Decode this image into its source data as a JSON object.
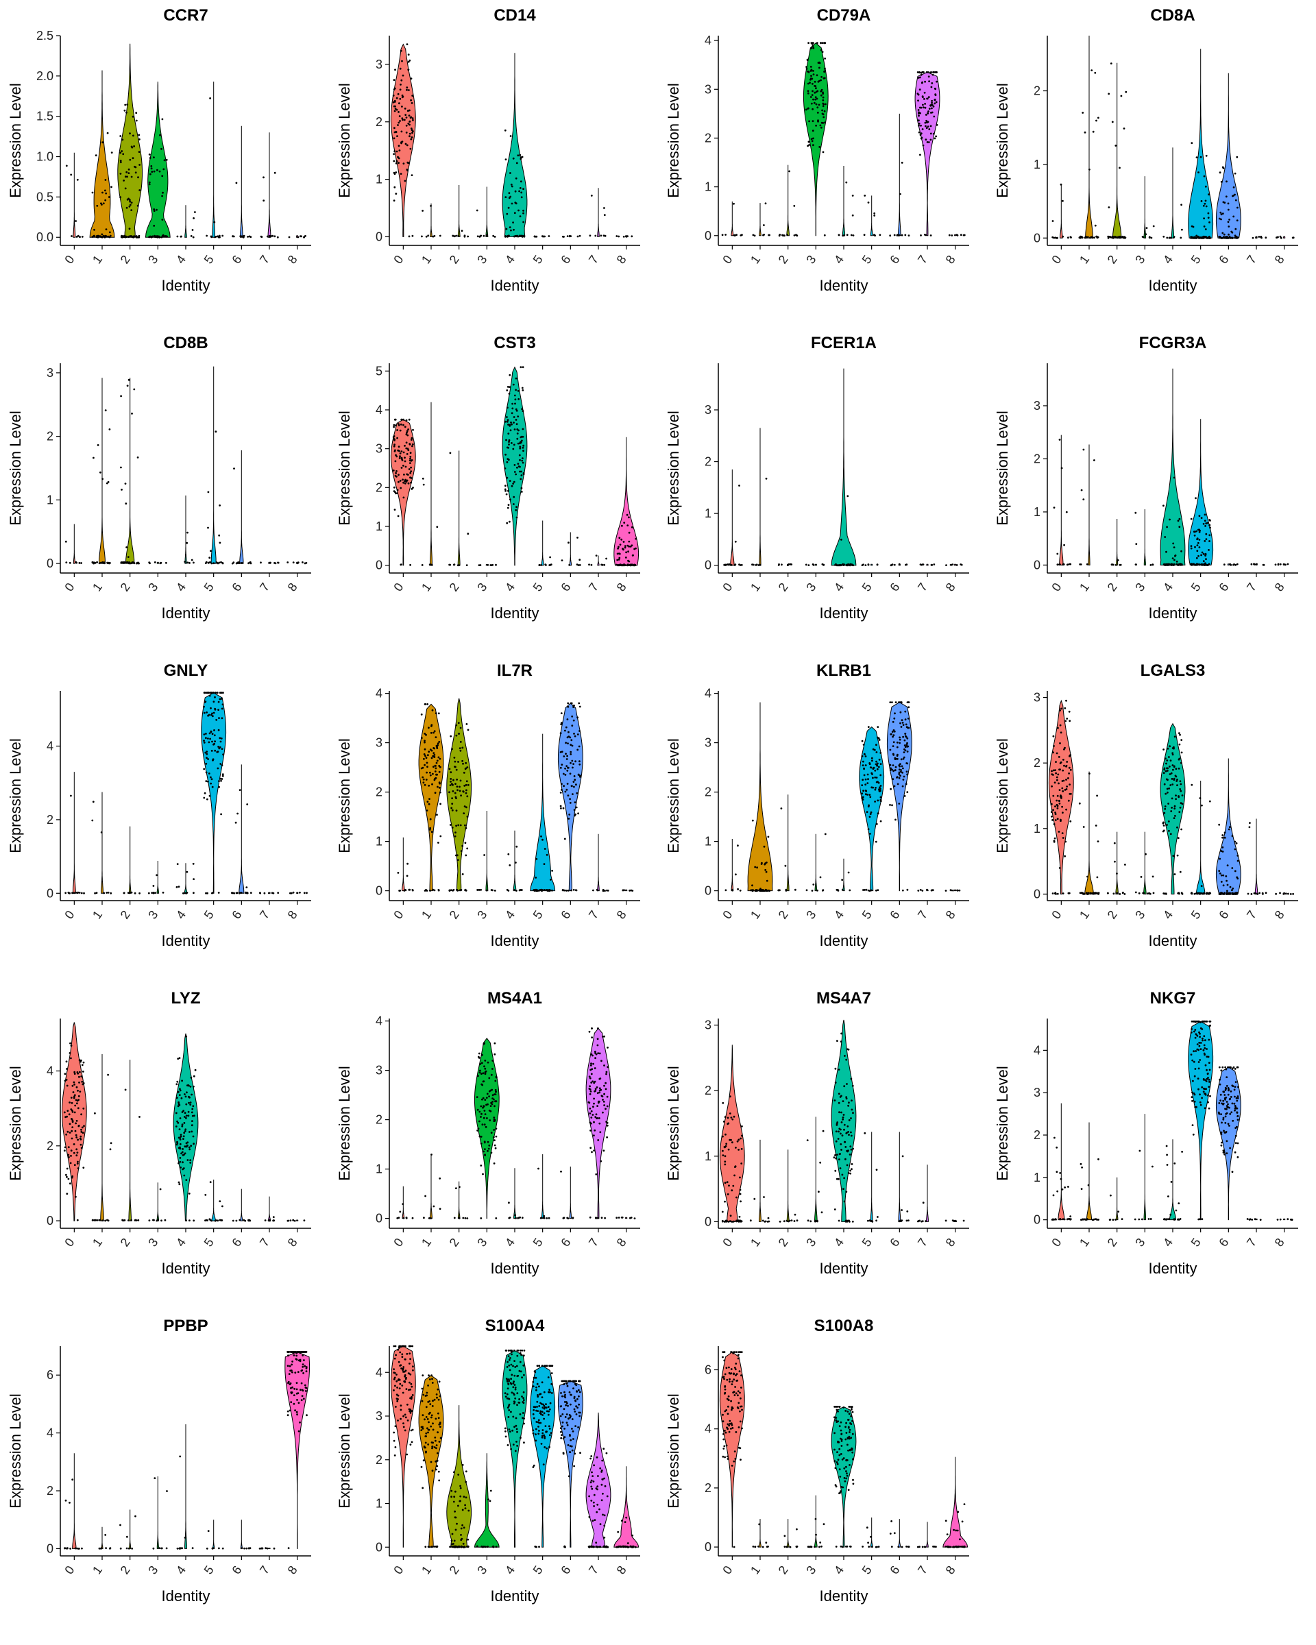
{
  "chart_data": {
    "type": "violin",
    "shared": {
      "xlabel": "Identity",
      "ylabel": "Expression Level",
      "categories": [
        "0",
        "1",
        "2",
        "3",
        "4",
        "5",
        "6",
        "7",
        "8"
      ],
      "colors": [
        "#F8766D",
        "#D39200",
        "#93AA00",
        "#00BA38",
        "#00C19F",
        "#00B9E3",
        "#619CFF",
        "#DB72FB",
        "#FF61C3"
      ]
    },
    "panels": [
      {
        "title": "CCR7",
        "yticks": [
          0,
          0.5,
          1,
          1.5,
          2,
          2.5
        ],
        "ytick_labels": [
          "0.0",
          "0.5",
          "1.0",
          "1.5",
          "2.0",
          "2.5"
        ],
        "ylim": [
          -0.1,
          2.5
        ],
        "max": [
          1.05,
          2.07,
          2.4,
          1.93,
          0.4,
          1.93,
          1.38,
          1.3,
          0.02
        ],
        "peak": [
          0,
          0.45,
          0.8,
          0.7,
          0,
          0,
          0,
          0,
          0
        ],
        "prop": [
          0.03,
          0.4,
          0.7,
          0.45,
          0.02,
          0.05,
          0.05,
          0.06,
          0.01
        ]
      },
      {
        "title": "CD14",
        "yticks": [
          0,
          1,
          2,
          3
        ],
        "ytick_labels": [
          "0",
          "1",
          "2",
          "3"
        ],
        "ylim": [
          -0.15,
          3.5
        ],
        "max": [
          3.35,
          0.58,
          0.9,
          0.87,
          3.2,
          0.02,
          0.02,
          0.85,
          0.02
        ],
        "peak": [
          2.05,
          0,
          0,
          0,
          0.6,
          0,
          0,
          0,
          0
        ],
        "prop": [
          0.97,
          0.02,
          0.03,
          0.03,
          0.55,
          0.01,
          0.01,
          0.02,
          0.01
        ]
      },
      {
        "title": "CD79A",
        "yticks": [
          0,
          1,
          2,
          3,
          4
        ],
        "ytick_labels": [
          "0",
          "1",
          "2",
          "3",
          "4"
        ],
        "ylim": [
          -0.2,
          4.1
        ],
        "max": [
          0.7,
          0.67,
          1.45,
          3.95,
          1.43,
          0.82,
          2.5,
          3.35,
          0.02
        ],
        "peak": [
          0,
          0,
          0,
          2.85,
          0,
          0,
          0,
          2.8,
          0
        ],
        "prop": [
          0.03,
          0.02,
          0.05,
          0.99,
          0.04,
          0.03,
          0.05,
          0.95,
          0.01
        ]
      },
      {
        "title": "CD8A",
        "yticks": [
          0,
          1,
          2
        ],
        "ytick_labels": [
          "0",
          "1",
          "2"
        ],
        "ylim": [
          -0.1,
          2.75
        ],
        "max": [
          0.73,
          2.75,
          2.38,
          0.84,
          1.23,
          2.57,
          2.24,
          0.02,
          0.02
        ],
        "peak": [
          0,
          0,
          0,
          0,
          0,
          0.2,
          0.25,
          0,
          0
        ],
        "prop": [
          0.05,
          0.25,
          0.3,
          0.02,
          0.04,
          0.6,
          0.65,
          0.01,
          0.01
        ]
      },
      {
        "title": "CD8B",
        "yticks": [
          0,
          1,
          2,
          3
        ],
        "ytick_labels": [
          "0",
          "1",
          "2",
          "3"
        ],
        "ylim": [
          -0.15,
          3.15
        ],
        "max": [
          0.62,
          2.92,
          2.92,
          0.02,
          1.07,
          3.1,
          1.78,
          0.02,
          0.02
        ],
        "peak": [
          0,
          0,
          0,
          0,
          0,
          0,
          0,
          0,
          0
        ],
        "prop": [
          0.01,
          0.2,
          0.3,
          0.01,
          0.01,
          0.15,
          0.1,
          0.01,
          0.01
        ]
      },
      {
        "title": "CST3",
        "yticks": [
          0,
          1,
          2,
          3,
          4,
          5
        ],
        "ytick_labels": [
          "0",
          "1",
          "2",
          "3",
          "4",
          "5"
        ],
        "ylim": [
          -0.2,
          5.2
        ],
        "max": [
          3.75,
          4.2,
          2.95,
          0.02,
          5.1,
          1.15,
          0.85,
          0.25,
          3.3
        ],
        "peak": [
          2.8,
          0,
          0,
          0,
          3.1,
          0,
          0,
          0,
          0.3
        ],
        "prop": [
          0.98,
          0.03,
          0.03,
          0.01,
          0.99,
          0.03,
          0.02,
          0.01,
          0.7
        ]
      },
      {
        "title": "FCER1A",
        "yticks": [
          0,
          1,
          2,
          3
        ],
        "ytick_labels": [
          "0",
          "1",
          "2",
          "3"
        ],
        "ylim": [
          -0.15,
          3.9
        ],
        "max": [
          1.85,
          2.65,
          0.02,
          0.02,
          3.8,
          0.02,
          0.02,
          0.02,
          0.02
        ],
        "peak": [
          0,
          0,
          0,
          0,
          0.1,
          0,
          0,
          0,
          0
        ],
        "prop": [
          0.1,
          0.01,
          0.01,
          0.01,
          0.25,
          0.01,
          0.01,
          0.01,
          0.01
        ]
      },
      {
        "title": "FCGR3A",
        "yticks": [
          0,
          1,
          2,
          3
        ],
        "ytick_labels": [
          "0",
          "1",
          "2",
          "3"
        ],
        "ylim": [
          -0.15,
          3.8
        ],
        "max": [
          2.45,
          2.27,
          0.87,
          1.05,
          3.7,
          2.75,
          0.02,
          0.02,
          0.02
        ],
        "peak": [
          0,
          0,
          0,
          0,
          0.3,
          0.3,
          0,
          0,
          0
        ],
        "prop": [
          0.1,
          0.01,
          0.01,
          0.01,
          0.5,
          0.7,
          0.01,
          0.01,
          0.01
        ]
      },
      {
        "title": "GNLY",
        "yticks": [
          0,
          2,
          4
        ],
        "ytick_labels": [
          "0",
          "2",
          "4"
        ],
        "ylim": [
          -0.2,
          5.5
        ],
        "max": [
          3.3,
          2.75,
          1.82,
          0.88,
          0.82,
          5.45,
          3.5,
          0.02,
          0.02
        ],
        "peak": [
          0,
          0,
          0,
          0,
          0,
          4.4,
          0,
          0,
          0
        ],
        "prop": [
          0.06,
          0.03,
          0.02,
          0.02,
          0.05,
          0.98,
          0.15,
          0.01,
          0.01
        ]
      },
      {
        "title": "IL7R",
        "yticks": [
          0,
          1,
          2,
          3,
          4
        ],
        "ytick_labels": [
          "0",
          "1",
          "2",
          "3",
          "4"
        ],
        "ylim": [
          -0.2,
          4.05
        ],
        "max": [
          1.08,
          3.78,
          3.9,
          1.62,
          1.22,
          3.18,
          3.8,
          1.15,
          0.02
        ],
        "peak": [
          0,
          2.6,
          2.1,
          0,
          0,
          0.3,
          2.7,
          0,
          0
        ],
        "prop": [
          0.05,
          0.9,
          0.85,
          0.03,
          0.05,
          0.4,
          0.9,
          0.02,
          0.01
        ]
      },
      {
        "title": "KLRB1",
        "yticks": [
          0,
          1,
          2,
          3,
          4
        ],
        "ytick_labels": [
          "0",
          "1",
          "2",
          "3",
          "4"
        ],
        "ylim": [
          -0.2,
          4.05
        ],
        "max": [
          1.05,
          3.82,
          1.95,
          1.15,
          0.65,
          3.32,
          3.82,
          0.02,
          0.02
        ],
        "peak": [
          0,
          0.2,
          0,
          0,
          0,
          2.3,
          3.0,
          0,
          0
        ],
        "prop": [
          0.02,
          0.5,
          0.03,
          0.02,
          0.01,
          0.9,
          0.99,
          0.01,
          0.01
        ]
      },
      {
        "title": "LGALS3",
        "yticks": [
          0,
          1,
          2,
          3
        ],
        "ytick_labels": [
          "0",
          "1",
          "2",
          "3"
        ],
        "ylim": [
          -0.1,
          3.1
        ],
        "max": [
          2.95,
          1.87,
          0.95,
          0.95,
          2.6,
          1.73,
          2.07,
          1.15,
          0.02
        ],
        "peak": [
          1.7,
          0,
          0,
          0,
          1.6,
          0,
          0.3,
          0,
          0
        ],
        "prop": [
          0.95,
          0.3,
          0.05,
          0.05,
          0.9,
          0.3,
          0.7,
          0.05,
          0.01
        ]
      },
      {
        "title": "LYZ",
        "yticks": [
          0,
          2,
          4
        ],
        "ytick_labels": [
          "0",
          "2",
          "4"
        ],
        "ylim": [
          -0.2,
          5.4
        ],
        "max": [
          5.3,
          4.45,
          4.3,
          1.02,
          5.0,
          1.1,
          0.85,
          0.65,
          0.02
        ],
        "peak": [
          2.9,
          0,
          0,
          0,
          2.6,
          0,
          0,
          0,
          0
        ],
        "prop": [
          0.99,
          0.08,
          0.05,
          0.02,
          0.98,
          0.1,
          0.03,
          0.03,
          0.01
        ]
      },
      {
        "title": "MS4A1",
        "yticks": [
          0,
          1,
          2,
          3,
          4
        ],
        "ytick_labels": [
          "0",
          "1",
          "2",
          "3",
          "4"
        ],
        "ylim": [
          -0.2,
          4.05
        ],
        "max": [
          0.65,
          1.3,
          0.75,
          3.65,
          1.02,
          1.3,
          1.05,
          3.85,
          0.02
        ],
        "peak": [
          0,
          0,
          0,
          2.4,
          0,
          0,
          0,
          2.6,
          0
        ],
        "prop": [
          0.02,
          0.03,
          0.02,
          0.99,
          0.03,
          0.02,
          0.02,
          0.95,
          0.01
        ]
      },
      {
        "title": "MS4A7",
        "yticks": [
          0,
          1,
          2,
          3
        ],
        "ytick_labels": [
          "0",
          "1",
          "2",
          "3"
        ],
        "ylim": [
          -0.1,
          3.1
        ],
        "max": [
          2.7,
          1.25,
          1.1,
          1.6,
          3.08,
          1.37,
          1.37,
          0.87,
          0.02
        ],
        "peak": [
          1.0,
          0,
          0,
          0,
          1.6,
          0,
          0,
          0,
          0
        ],
        "prop": [
          0.7,
          0.03,
          0.03,
          0.05,
          0.85,
          0.03,
          0.03,
          0.03,
          0.01
        ]
      },
      {
        "title": "NKG7",
        "yticks": [
          0,
          1,
          2,
          3,
          4
        ],
        "ytick_labels": [
          "0",
          "1",
          "2",
          "3",
          "4"
        ],
        "ylim": [
          -0.2,
          4.75
        ],
        "max": [
          2.75,
          2.3,
          1.0,
          2.5,
          1.9,
          4.68,
          3.6,
          0.02,
          0.02
        ],
        "peak": [
          0,
          0,
          0,
          0,
          0,
          3.8,
          2.7,
          0,
          0
        ],
        "prop": [
          0.2,
          0.15,
          0.02,
          0.02,
          0.2,
          0.98,
          0.99,
          0.01,
          0.01
        ]
      },
      {
        "title": "PPBP",
        "yticks": [
          0,
          2,
          4,
          6
        ],
        "ytick_labels": [
          "0",
          "2",
          "4",
          "6"
        ],
        "ylim": [
          -0.25,
          7.0
        ],
        "max": [
          3.3,
          0.75,
          1.35,
          2.5,
          4.3,
          1.0,
          1.0,
          0.02,
          6.8
        ],
        "peak": [
          0,
          0,
          0,
          0,
          0,
          0,
          0,
          0,
          6.3
        ],
        "prop": [
          0.1,
          0.01,
          0.01,
          0.01,
          0.03,
          0.01,
          0.01,
          0.01,
          0.99
        ]
      },
      {
        "title": "S100A4",
        "yticks": [
          0,
          1,
          2,
          3,
          4
        ],
        "ytick_labels": [
          "0",
          "1",
          "2",
          "3",
          "4"
        ],
        "ylim": [
          -0.2,
          4.6
        ],
        "max": [
          4.6,
          3.93,
          3.25,
          2.15,
          4.5,
          4.15,
          3.8,
          3.08,
          1.85
        ],
        "peak": [
          3.75,
          2.9,
          0.8,
          0.9,
          3.6,
          3.2,
          3.3,
          1.2,
          0.3
        ],
        "prop": [
          0.99,
          0.85,
          0.6,
          0.1,
          0.97,
          0.95,
          0.97,
          0.65,
          0.3
        ]
      },
      {
        "title": "S100A8",
        "yticks": [
          0,
          2,
          4,
          6
        ],
        "ytick_labels": [
          "0",
          "2",
          "4",
          "6"
        ],
        "ylim": [
          -0.3,
          6.8
        ],
        "max": [
          6.6,
          0.95,
          0.95,
          1.75,
          4.75,
          1.0,
          0.95,
          0.85,
          3.05
        ],
        "peak": [
          5.0,
          0,
          0,
          0,
          3.6,
          0,
          0,
          0,
          0.3
        ],
        "prop": [
          0.99,
          0.03,
          0.03,
          0.05,
          0.95,
          0.03,
          0.03,
          0.02,
          0.3
        ]
      }
    ]
  }
}
